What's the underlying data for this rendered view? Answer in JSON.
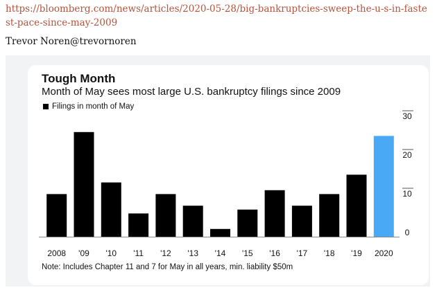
{
  "tweet": {
    "link_text": "https://bloomberg.com/news/articles/2020-05-28/big-bankruptcies-sweep-the-u-s-in-fastest-pace-since-may-2009",
    "author_line": "Trevor Noren@trevornoren"
  },
  "colors": {
    "link": "#b5523b",
    "bar": "#000000",
    "highlight_bar": "#4aa9f5"
  },
  "chart_data": {
    "type": "bar",
    "title": "Tough Month",
    "subtitle": "Month of May sees most large U.S. bankruptcy filings since 2009",
    "legend": [
      "Filings in month of May"
    ],
    "categories": [
      "2008",
      "'09",
      "'10",
      "'11",
      "'12",
      "'13",
      "'14",
      "'15",
      "'16",
      "'17",
      "'18",
      "'19",
      "2020"
    ],
    "values": [
      11,
      27,
      14,
      6,
      11,
      8,
      2,
      7,
      12,
      8,
      11,
      16,
      26
    ],
    "highlight_index": 12,
    "ylim": [
      0,
      30
    ],
    "yticks": [
      0,
      10,
      20,
      30
    ],
    "yaxis_side": "right",
    "grid": false,
    "note": "Note: Includes Chapter 11 and 7 for May in all years, min. liability $50m"
  }
}
